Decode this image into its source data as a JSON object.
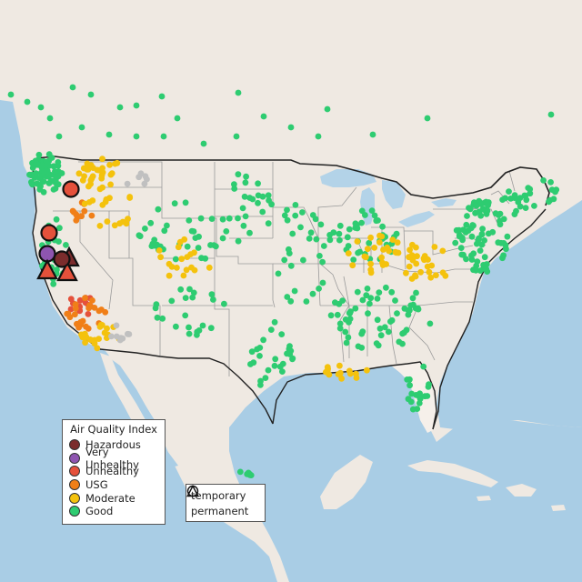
{
  "map": {
    "colors": {
      "land_other": "#efe9e2",
      "land_us": "#f6f0ea",
      "water": "#a9cde5",
      "lakes": "#b3d3e8",
      "border": "#222222",
      "state_lines": "#9a9a9a",
      "no_data": "#c0c0c0"
    },
    "aqi_colors": {
      "Hazardous": "#7b2c2c",
      "Very Unhealthy": "#8e55b0",
      "Unhealthy": "#e5513b",
      "USG": "#f07f18",
      "Moderate": "#f4c20d",
      "Good": "#2ecc71"
    },
    "legend_aqi": {
      "title": "Air Quality Index",
      "items": [
        {
          "label": "Hazardous",
          "color": "#7b2c2c"
        },
        {
          "label": "Very Unhealthy",
          "color": "#8e55b0"
        },
        {
          "label": "Unhealthy",
          "color": "#e5513b"
        },
        {
          "label": "USG",
          "color": "#f07f18"
        },
        {
          "label": "Moderate",
          "color": "#f4c20d"
        },
        {
          "label": "Good",
          "color": "#2ecc71"
        }
      ]
    },
    "legend_shape": {
      "items": [
        {
          "label": "temporary",
          "icon": "circle-outline-icon"
        },
        {
          "label": "permanent",
          "icon": "triangle-outline-icon"
        }
      ]
    }
  }
}
